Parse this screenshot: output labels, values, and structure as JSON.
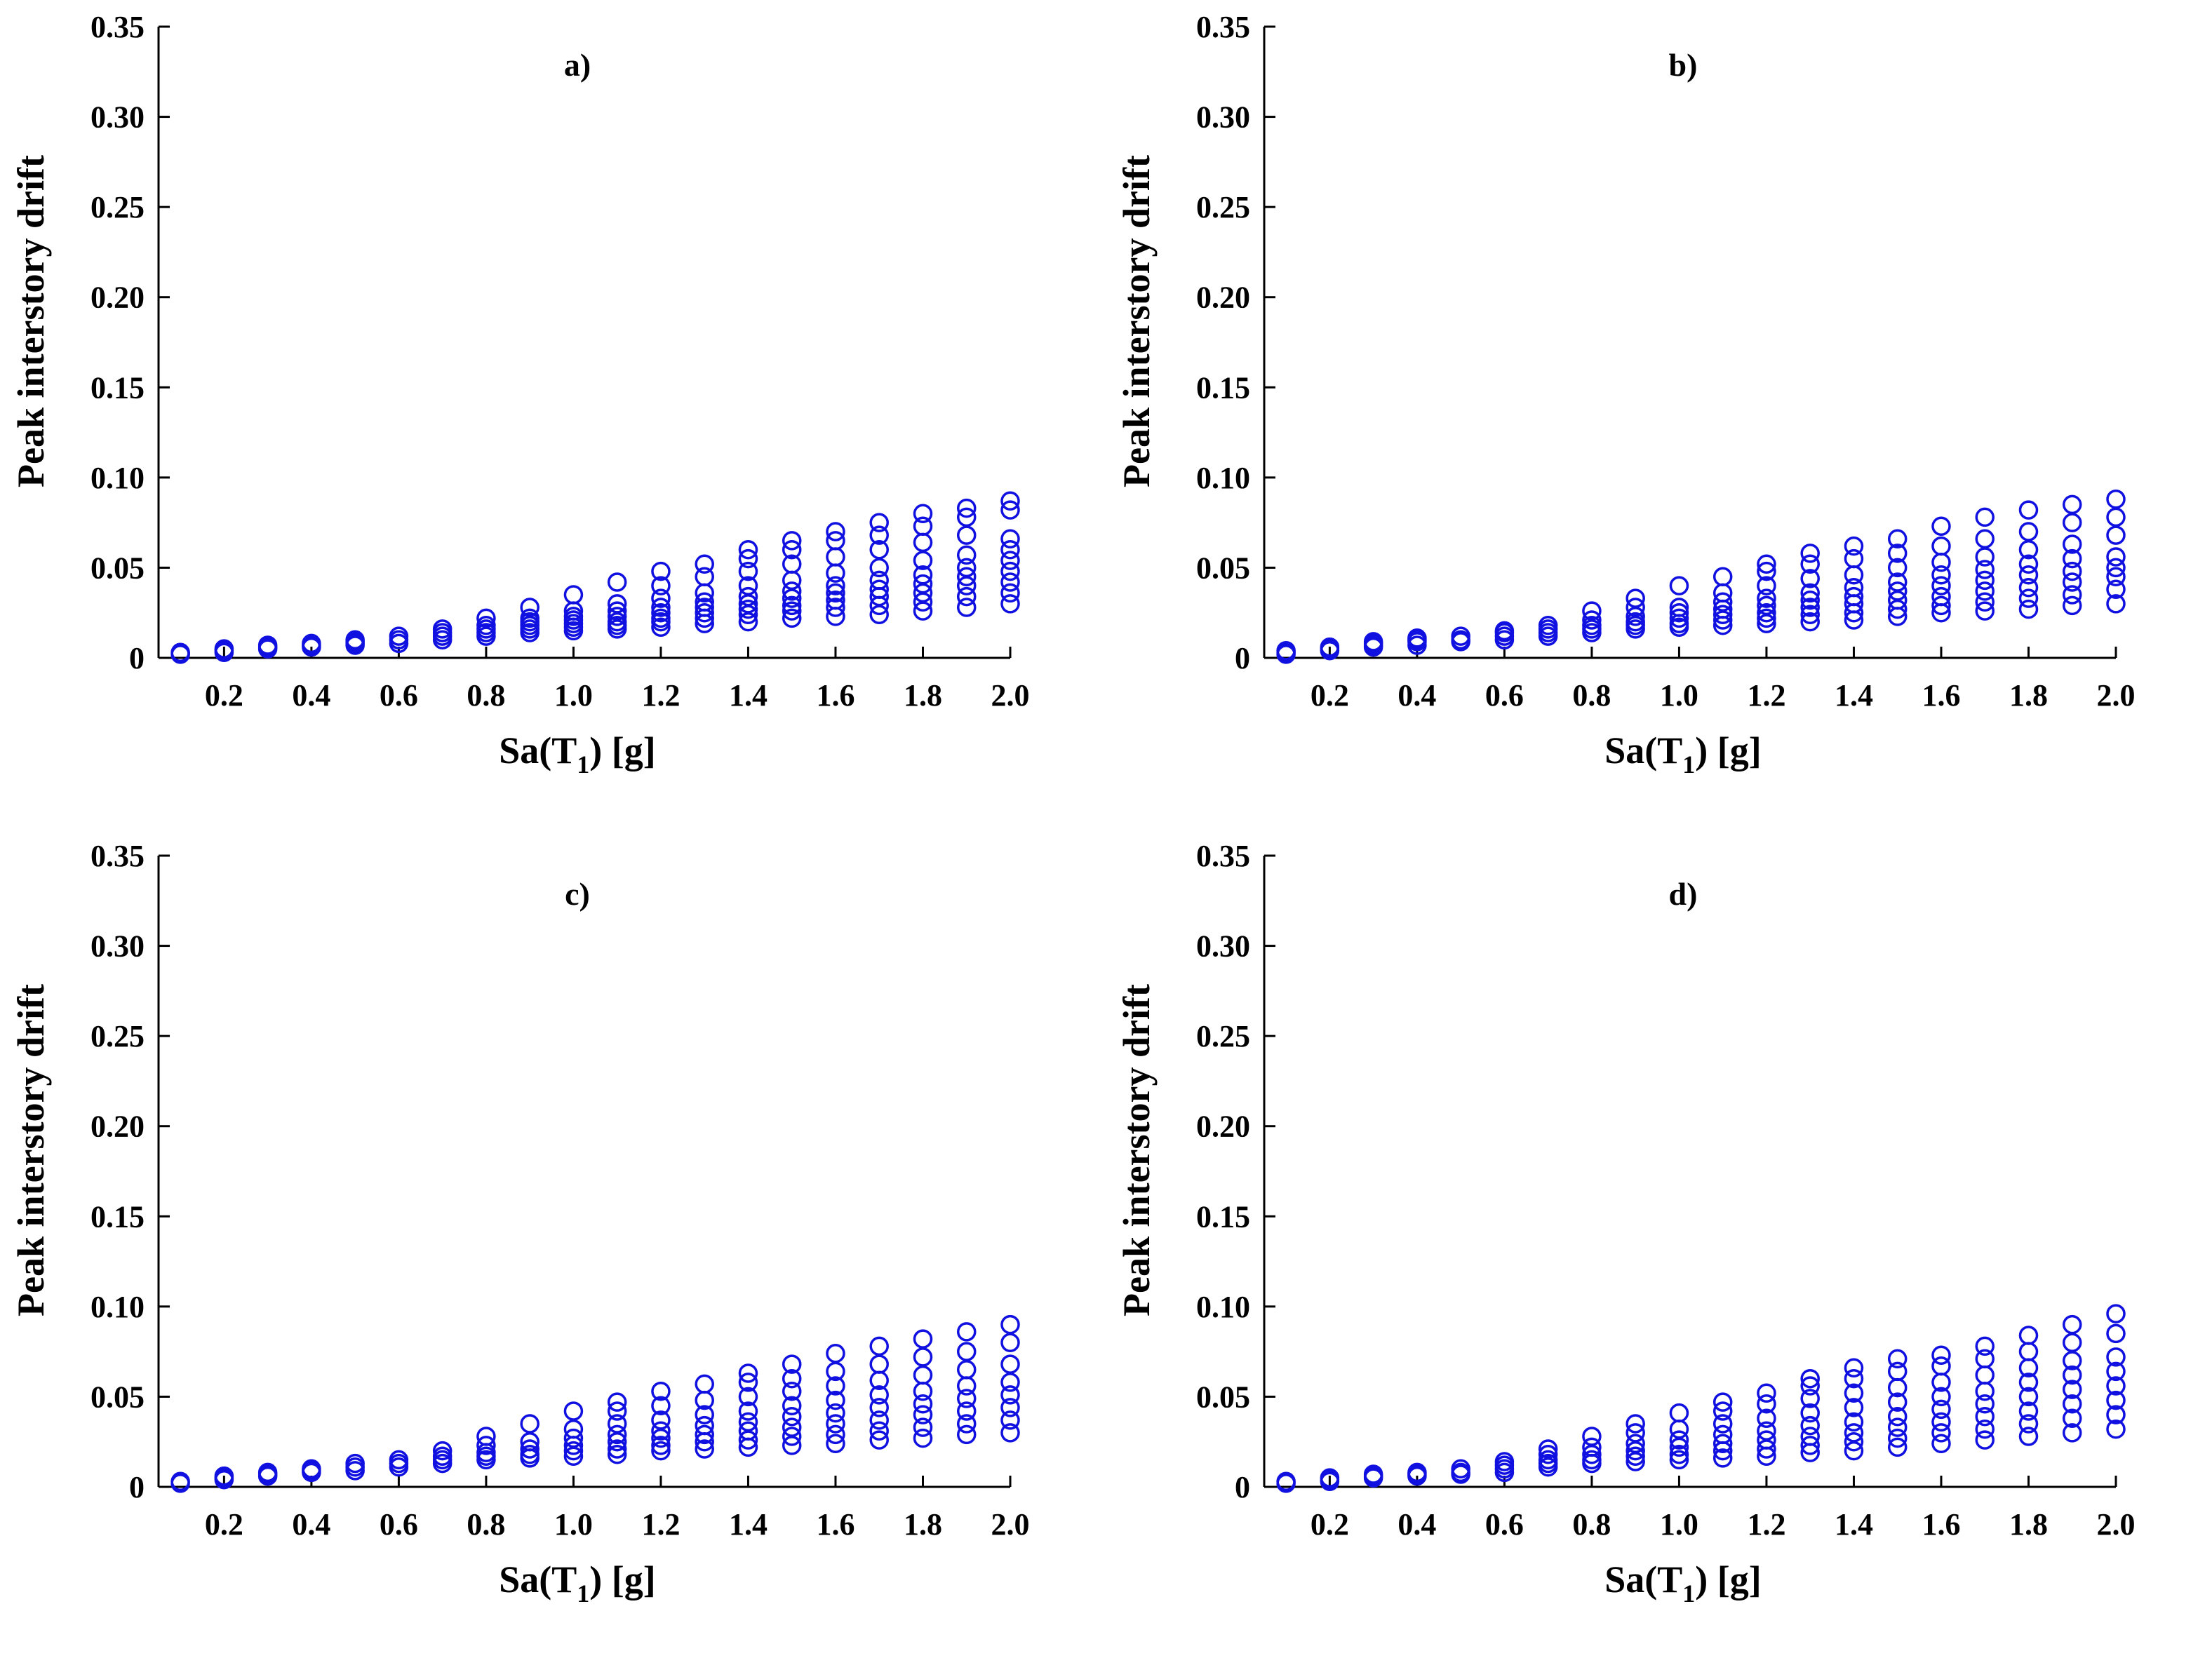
{
  "figure": {
    "marker_color": "#1010e0"
  },
  "chart_data": [
    {
      "type": "scatter",
      "panel_label": "a)",
      "xlabel_main": "Sa(T",
      "xlabel_sub": "1",
      "xlabel_tail": ") [g]",
      "ylabel": "Peak interstory drift",
      "xlim": [
        0.05,
        2.0
      ],
      "ylim": [
        0,
        0.35
      ],
      "xticks": [
        "0.2",
        "0.4",
        "0.6",
        "0.8",
        "1.0",
        "1.2",
        "1.4",
        "1.6",
        "1.8",
        "2.0"
      ],
      "yticks": [
        "0",
        "0.05",
        "0.10",
        "0.15",
        "0.20",
        "0.25",
        "0.30",
        "0.35"
      ],
      "series": [
        {
          "x": 0.1,
          "y": [
            0.002,
            0.0025,
            0.003
          ]
        },
        {
          "x": 0.2,
          "y": [
            0.003,
            0.004,
            0.005
          ]
        },
        {
          "x": 0.3,
          "y": [
            0.005,
            0.006,
            0.007
          ]
        },
        {
          "x": 0.4,
          "y": [
            0.006,
            0.007,
            0.008
          ]
        },
        {
          "x": 0.5,
          "y": [
            0.007,
            0.008,
            0.009,
            0.01
          ]
        },
        {
          "x": 0.6,
          "y": [
            0.008,
            0.01,
            0.012
          ]
        },
        {
          "x": 0.7,
          "y": [
            0.01,
            0.012,
            0.014,
            0.016
          ]
        },
        {
          "x": 0.8,
          "y": [
            0.012,
            0.014,
            0.016,
            0.018,
            0.022
          ]
        },
        {
          "x": 0.9,
          "y": [
            0.014,
            0.016,
            0.018,
            0.02,
            0.022,
            0.028
          ]
        },
        {
          "x": 1.0,
          "y": [
            0.015,
            0.017,
            0.019,
            0.021,
            0.023,
            0.026,
            0.035
          ]
        },
        {
          "x": 1.1,
          "y": [
            0.016,
            0.018,
            0.02,
            0.023,
            0.026,
            0.03,
            0.042
          ]
        },
        {
          "x": 1.2,
          "y": [
            0.017,
            0.02,
            0.022,
            0.025,
            0.028,
            0.033,
            0.04,
            0.048
          ]
        },
        {
          "x": 1.3,
          "y": [
            0.019,
            0.022,
            0.025,
            0.028,
            0.031,
            0.036,
            0.045,
            0.052
          ]
        },
        {
          "x": 1.4,
          "y": [
            0.02,
            0.024,
            0.027,
            0.03,
            0.034,
            0.04,
            0.048,
            0.055,
            0.06
          ]
        },
        {
          "x": 1.5,
          "y": [
            0.022,
            0.026,
            0.029,
            0.033,
            0.037,
            0.043,
            0.052,
            0.06,
            0.065
          ]
        },
        {
          "x": 1.6,
          "y": [
            0.023,
            0.028,
            0.032,
            0.036,
            0.04,
            0.047,
            0.056,
            0.065,
            0.07
          ]
        },
        {
          "x": 1.7,
          "y": [
            0.024,
            0.029,
            0.034,
            0.038,
            0.043,
            0.05,
            0.06,
            0.068,
            0.075
          ]
        },
        {
          "x": 1.8,
          "y": [
            0.026,
            0.031,
            0.036,
            0.041,
            0.046,
            0.054,
            0.064,
            0.073,
            0.08
          ]
        },
        {
          "x": 1.9,
          "y": [
            0.028,
            0.034,
            0.04,
            0.045,
            0.05,
            0.057,
            0.068,
            0.078,
            0.083
          ]
        },
        {
          "x": 2.0,
          "y": [
            0.03,
            0.036,
            0.042,
            0.048,
            0.054,
            0.06,
            0.066,
            0.082,
            0.087
          ]
        }
      ]
    },
    {
      "type": "scatter",
      "panel_label": "b)",
      "xlabel_main": "Sa(T",
      "xlabel_sub": "1",
      "xlabel_tail": ") [g]",
      "ylabel": "Peak interstory drift",
      "xlim": [
        0.05,
        2.0
      ],
      "ylim": [
        0,
        0.35
      ],
      "xticks": [
        "0.2",
        "0.4",
        "0.6",
        "0.8",
        "1.0",
        "1.2",
        "1.4",
        "1.6",
        "1.8",
        "2.0"
      ],
      "yticks": [
        "0",
        "0.05",
        "0.10",
        "0.15",
        "0.20",
        "0.25",
        "0.30",
        "0.35"
      ],
      "series": [
        {
          "x": 0.1,
          "y": [
            0.002,
            0.003,
            0.004
          ]
        },
        {
          "x": 0.2,
          "y": [
            0.004,
            0.005,
            0.006
          ]
        },
        {
          "x": 0.3,
          "y": [
            0.006,
            0.007,
            0.008,
            0.009
          ]
        },
        {
          "x": 0.4,
          "y": [
            0.007,
            0.009,
            0.01,
            0.011
          ]
        },
        {
          "x": 0.5,
          "y": [
            0.009,
            0.01,
            0.012
          ]
        },
        {
          "x": 0.6,
          "y": [
            0.01,
            0.012,
            0.014,
            0.015
          ]
        },
        {
          "x": 0.7,
          "y": [
            0.012,
            0.014,
            0.016,
            0.018
          ]
        },
        {
          "x": 0.8,
          "y": [
            0.014,
            0.016,
            0.018,
            0.021,
            0.026
          ]
        },
        {
          "x": 0.9,
          "y": [
            0.016,
            0.018,
            0.02,
            0.023,
            0.028,
            0.033
          ]
        },
        {
          "x": 1.0,
          "y": [
            0.017,
            0.019,
            0.022,
            0.025,
            0.028,
            0.04
          ]
        },
        {
          "x": 1.1,
          "y": [
            0.018,
            0.021,
            0.024,
            0.027,
            0.031,
            0.036,
            0.045
          ]
        },
        {
          "x": 1.2,
          "y": [
            0.019,
            0.022,
            0.025,
            0.029,
            0.033,
            0.04,
            0.048,
            0.052
          ]
        },
        {
          "x": 1.3,
          "y": [
            0.02,
            0.024,
            0.028,
            0.032,
            0.036,
            0.044,
            0.052,
            0.058
          ]
        },
        {
          "x": 1.4,
          "y": [
            0.021,
            0.025,
            0.03,
            0.034,
            0.039,
            0.046,
            0.055,
            0.062
          ]
        },
        {
          "x": 1.5,
          "y": [
            0.023,
            0.027,
            0.032,
            0.037,
            0.042,
            0.05,
            0.058,
            0.066
          ]
        },
        {
          "x": 1.6,
          "y": [
            0.025,
            0.029,
            0.034,
            0.04,
            0.046,
            0.053,
            0.062,
            0.073
          ]
        },
        {
          "x": 1.7,
          "y": [
            0.026,
            0.031,
            0.037,
            0.043,
            0.049,
            0.056,
            0.066,
            0.078
          ]
        },
        {
          "x": 1.8,
          "y": [
            0.027,
            0.033,
            0.039,
            0.046,
            0.052,
            0.06,
            0.07,
            0.082
          ]
        },
        {
          "x": 1.9,
          "y": [
            0.029,
            0.035,
            0.042,
            0.048,
            0.055,
            0.063,
            0.075,
            0.085
          ]
        },
        {
          "x": 2.0,
          "y": [
            0.03,
            0.038,
            0.045,
            0.05,
            0.056,
            0.068,
            0.078,
            0.088
          ]
        }
      ]
    },
    {
      "type": "scatter",
      "panel_label": "c)",
      "xlabel_main": "Sa(T",
      "xlabel_sub": "1",
      "xlabel_tail": ") [g]",
      "ylabel": "Peak interstory drift",
      "xlim": [
        0.05,
        2.0
      ],
      "ylim": [
        0,
        0.35
      ],
      "xticks": [
        "0.2",
        "0.4",
        "0.6",
        "0.8",
        "1.0",
        "1.2",
        "1.4",
        "1.6",
        "1.8",
        "2.0"
      ],
      "yticks": [
        "0",
        "0.05",
        "0.10",
        "0.15",
        "0.20",
        "0.25",
        "0.30",
        "0.35"
      ],
      "series": [
        {
          "x": 0.1,
          "y": [
            0.002,
            0.003
          ]
        },
        {
          "x": 0.2,
          "y": [
            0.004,
            0.005,
            0.006
          ]
        },
        {
          "x": 0.3,
          "y": [
            0.006,
            0.007,
            0.008
          ]
        },
        {
          "x": 0.4,
          "y": [
            0.008,
            0.009,
            0.01
          ]
        },
        {
          "x": 0.5,
          "y": [
            0.009,
            0.011,
            0.013
          ]
        },
        {
          "x": 0.6,
          "y": [
            0.011,
            0.013,
            0.015
          ]
        },
        {
          "x": 0.7,
          "y": [
            0.013,
            0.015,
            0.017,
            0.02
          ]
        },
        {
          "x": 0.8,
          "y": [
            0.015,
            0.017,
            0.019,
            0.023,
            0.028
          ]
        },
        {
          "x": 0.9,
          "y": [
            0.016,
            0.018,
            0.021,
            0.025,
            0.035
          ]
        },
        {
          "x": 1.0,
          "y": [
            0.017,
            0.02,
            0.023,
            0.027,
            0.032,
            0.042
          ]
        },
        {
          "x": 1.1,
          "y": [
            0.018,
            0.021,
            0.025,
            0.029,
            0.035,
            0.042,
            0.047
          ]
        },
        {
          "x": 1.2,
          "y": [
            0.02,
            0.023,
            0.027,
            0.031,
            0.037,
            0.045,
            0.053
          ]
        },
        {
          "x": 1.3,
          "y": [
            0.021,
            0.025,
            0.029,
            0.034,
            0.04,
            0.048,
            0.057
          ]
        },
        {
          "x": 1.4,
          "y": [
            0.022,
            0.026,
            0.031,
            0.036,
            0.042,
            0.05,
            0.058,
            0.063
          ]
        },
        {
          "x": 1.5,
          "y": [
            0.023,
            0.028,
            0.033,
            0.039,
            0.045,
            0.053,
            0.06,
            0.068
          ]
        },
        {
          "x": 1.6,
          "y": [
            0.024,
            0.029,
            0.035,
            0.041,
            0.048,
            0.056,
            0.064,
            0.074
          ]
        },
        {
          "x": 1.7,
          "y": [
            0.026,
            0.031,
            0.037,
            0.044,
            0.051,
            0.059,
            0.068,
            0.078
          ]
        },
        {
          "x": 1.8,
          "y": [
            0.027,
            0.033,
            0.04,
            0.046,
            0.053,
            0.062,
            0.072,
            0.082
          ]
        },
        {
          "x": 1.9,
          "y": [
            0.029,
            0.035,
            0.042,
            0.049,
            0.056,
            0.065,
            0.075,
            0.086
          ]
        },
        {
          "x": 2.0,
          "y": [
            0.03,
            0.037,
            0.044,
            0.051,
            0.058,
            0.068,
            0.08,
            0.09
          ]
        }
      ]
    },
    {
      "type": "scatter",
      "panel_label": "d)",
      "xlabel_main": "Sa(T",
      "xlabel_sub": "1",
      "xlabel_tail": ") [g]",
      "ylabel": "Peak interstory drift",
      "xlim": [
        0.05,
        2.0
      ],
      "ylim": [
        0,
        0.35
      ],
      "xticks": [
        "0.2",
        "0.4",
        "0.6",
        "0.8",
        "1.0",
        "1.2",
        "1.4",
        "1.6",
        "1.8",
        "2.0"
      ],
      "yticks": [
        "0",
        "0.05",
        "0.10",
        "0.15",
        "0.20",
        "0.25",
        "0.30",
        "0.35"
      ],
      "series": [
        {
          "x": 0.1,
          "y": [
            0.002,
            0.003
          ]
        },
        {
          "x": 0.2,
          "y": [
            0.003,
            0.004,
            0.005
          ]
        },
        {
          "x": 0.3,
          "y": [
            0.005,
            0.006,
            0.007
          ]
        },
        {
          "x": 0.4,
          "y": [
            0.006,
            0.007,
            0.008
          ]
        },
        {
          "x": 0.5,
          "y": [
            0.007,
            0.008,
            0.01
          ]
        },
        {
          "x": 0.6,
          "y": [
            0.008,
            0.01,
            0.012,
            0.014
          ]
        },
        {
          "x": 0.7,
          "y": [
            0.011,
            0.013,
            0.015,
            0.018,
            0.021
          ]
        },
        {
          "x": 0.8,
          "y": [
            0.013,
            0.015,
            0.018,
            0.022,
            0.028
          ]
        },
        {
          "x": 0.9,
          "y": [
            0.014,
            0.017,
            0.02,
            0.024,
            0.03,
            0.035
          ]
        },
        {
          "x": 1.0,
          "y": [
            0.015,
            0.018,
            0.022,
            0.026,
            0.032,
            0.041
          ]
        },
        {
          "x": 1.1,
          "y": [
            0.016,
            0.02,
            0.024,
            0.029,
            0.035,
            0.042,
            0.047
          ]
        },
        {
          "x": 1.2,
          "y": [
            0.017,
            0.021,
            0.026,
            0.031,
            0.038,
            0.046,
            0.052
          ]
        },
        {
          "x": 1.3,
          "y": [
            0.019,
            0.023,
            0.028,
            0.034,
            0.041,
            0.049,
            0.056,
            0.06
          ]
        },
        {
          "x": 1.4,
          "y": [
            0.02,
            0.025,
            0.03,
            0.036,
            0.044,
            0.052,
            0.06,
            0.066
          ]
        },
        {
          "x": 1.5,
          "y": [
            0.022,
            0.027,
            0.033,
            0.039,
            0.047,
            0.055,
            0.064,
            0.071
          ]
        },
        {
          "x": 1.6,
          "y": [
            0.024,
            0.03,
            0.036,
            0.043,
            0.05,
            0.058,
            0.067,
            0.073
          ]
        },
        {
          "x": 1.7,
          "y": [
            0.026,
            0.032,
            0.039,
            0.046,
            0.053,
            0.062,
            0.071,
            0.078
          ]
        },
        {
          "x": 1.8,
          "y": [
            0.028,
            0.035,
            0.042,
            0.05,
            0.058,
            0.066,
            0.075,
            0.084
          ]
        },
        {
          "x": 1.9,
          "y": [
            0.03,
            0.038,
            0.046,
            0.054,
            0.062,
            0.07,
            0.08,
            0.09
          ]
        },
        {
          "x": 2.0,
          "y": [
            0.032,
            0.04,
            0.048,
            0.056,
            0.064,
            0.072,
            0.085,
            0.096
          ]
        }
      ]
    }
  ]
}
